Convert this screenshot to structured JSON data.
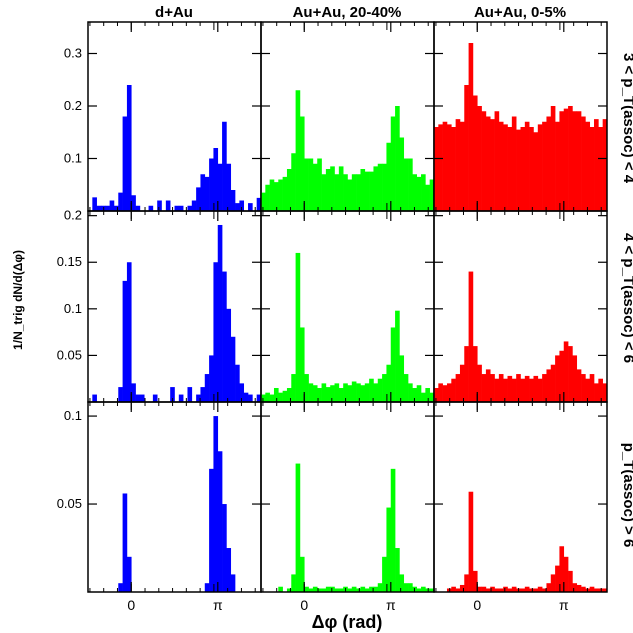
{
  "chart_data": {
    "type": "bar",
    "col_titles": [
      "d+Au",
      "Au+Au, 20-40%",
      "Au+Au, 0-5%"
    ],
    "row_labels": [
      "3 < p_T(assoc) < 4",
      "4 < p_T(assoc) < 6",
      "p_T(assoc) > 6"
    ],
    "xlabel": "Δφ (rad)",
    "ylabel": "1/N_trig dN/d(Δφ)",
    "xticks": [
      "0",
      "π"
    ],
    "xlim": [
      -1.57,
      4.71
    ],
    "rows": [
      {
        "ylim": [
          0,
          0.36
        ],
        "yticks": [
          0.1,
          0.2,
          0.3
        ],
        "panels": [
          {
            "color": "#0000ff",
            "values": [
              0,
              0.026,
              0.01,
              0.01,
              0.01,
              0.02,
              0.01,
              0.035,
              0.18,
              0.24,
              0.03,
              0.01,
              0,
              0,
              0.01,
              0,
              0.02,
              0,
              0.02,
              0,
              0.01,
              0.01,
              0,
              0.01,
              0.02,
              0.045,
              0.07,
              0.065,
              0.1,
              0.12,
              0.09,
              0.17,
              0.09,
              0.04,
              0.015,
              0.02,
              0,
              0.015,
              0,
              0.025
            ]
          },
          {
            "color": "#00ff00",
            "values": [
              0.035,
              0.05,
              0.06,
              0.055,
              0.06,
              0.065,
              0.08,
              0.11,
              0.23,
              0.18,
              0.1,
              0.1,
              0.09,
              0.1,
              0.07,
              0.08,
              0.085,
              0.07,
              0.085,
              0.07,
              0.06,
              0.07,
              0.07,
              0.08,
              0.075,
              0.075,
              0.085,
              0.09,
              0.09,
              0.13,
              0.18,
              0.2,
              0.14,
              0.1,
              0.1,
              0.07,
              0.065,
              0.07,
              0.05,
              0.06
            ]
          },
          {
            "color": "#ff0000",
            "values": [
              0.16,
              0.165,
              0.17,
              0.165,
              0.16,
              0.175,
              0.17,
              0.24,
              0.32,
              0.22,
              0.2,
              0.19,
              0.18,
              0.175,
              0.19,
              0.17,
              0.165,
              0.16,
              0.18,
              0.155,
              0.16,
              0.17,
              0.16,
              0.15,
              0.165,
              0.17,
              0.18,
              0.2,
              0.17,
              0.19,
              0.195,
              0.2,
              0.19,
              0.19,
              0.18,
              0.17,
              0.16,
              0.175,
              0.16,
              0.175
            ]
          }
        ]
      },
      {
        "ylim": [
          0,
          0.205
        ],
        "yticks": [
          0.05,
          0.1,
          0.15,
          0.2
        ],
        "panels": [
          {
            "color": "#0000ff",
            "values": [
              0,
              0.008,
              0,
              0,
              0,
              0,
              0,
              0.016,
              0.13,
              0.15,
              0.02,
              0.008,
              0.008,
              0,
              0,
              0.008,
              0,
              0,
              0,
              0.016,
              0,
              0.008,
              0,
              0.016,
              0,
              0.008,
              0.016,
              0.03,
              0.05,
              0.15,
              0.19,
              0.14,
              0.1,
              0.07,
              0.04,
              0.02,
              0.01,
              0.008,
              0,
              0.008
            ]
          },
          {
            "color": "#00ff00",
            "values": [
              0.008,
              0.01,
              0.008,
              0.015,
              0.01,
              0.012,
              0.015,
              0.03,
              0.16,
              0.08,
              0.03,
              0.02,
              0.018,
              0.015,
              0.02,
              0.016,
              0.018,
              0.02,
              0.015,
              0.02,
              0.018,
              0.022,
              0.02,
              0.018,
              0.02,
              0.025,
              0.02,
              0.025,
              0.03,
              0.04,
              0.08,
              0.098,
              0.05,
              0.03,
              0.02,
              0.015,
              0.018,
              0.01,
              0.015,
              0.01
            ]
          },
          {
            "color": "#ff0000",
            "values": [
              0.015,
              0.02,
              0.018,
              0.02,
              0.025,
              0.03,
              0.04,
              0.06,
              0.14,
              0.06,
              0.04,
              0.03,
              0.035,
              0.03,
              0.025,
              0.03,
              0.025,
              0.028,
              0.025,
              0.03,
              0.025,
              0.028,
              0.025,
              0.028,
              0.025,
              0.03,
              0.035,
              0.04,
              0.05,
              0.055,
              0.065,
              0.06,
              0.05,
              0.035,
              0.03,
              0.025,
              0.03,
              0.02,
              0.025,
              0.02
            ]
          }
        ]
      },
      {
        "ylim": [
          0,
          0.108
        ],
        "yticks": [
          0.05,
          0.1
        ],
        "panels": [
          {
            "color": "#0000ff",
            "values": [
              0,
              0,
              0,
              0,
              0,
              0,
              0,
              0.005,
              0.056,
              0.02,
              0,
              0,
              0,
              0,
              0,
              0,
              0,
              0,
              0,
              0,
              0,
              0,
              0,
              0,
              0,
              0,
              0,
              0.005,
              0.07,
              0.1,
              0.08,
              0.05,
              0.025,
              0.01,
              0,
              0,
              0,
              0,
              0,
              0
            ]
          },
          {
            "color": "#00ff00",
            "values": [
              0,
              0,
              0,
              0,
              0.003,
              0,
              0.002,
              0.01,
              0.073,
              0.02,
              0.003,
              0.002,
              0.003,
              0.002,
              0.002,
              0.003,
              0.003,
              0.002,
              0.002,
              0.003,
              0.002,
              0.003,
              0.002,
              0.003,
              0.002,
              0.003,
              0.003,
              0.005,
              0.02,
              0.048,
              0.07,
              0.025,
              0.01,
              0.005,
              0.005,
              0.003,
              0.002,
              0.003,
              0.002,
              0.002
            ]
          },
          {
            "color": "#ff0000",
            "values": [
              0,
              0,
              0,
              0.002,
              0.003,
              0.002,
              0.004,
              0.01,
              0.057,
              0.012,
              0.003,
              0.003,
              0.002,
              0.003,
              0.002,
              0.002,
              0.003,
              0.002,
              0.003,
              0.002,
              0.002,
              0.003,
              0.002,
              0.002,
              0.003,
              0.002,
              0.005,
              0.01,
              0.015,
              0.026,
              0.02,
              0.012,
              0.005,
              0.004,
              0.003,
              0.002,
              0.003,
              0.002,
              0.002,
              0.002
            ]
          }
        ]
      }
    ]
  }
}
